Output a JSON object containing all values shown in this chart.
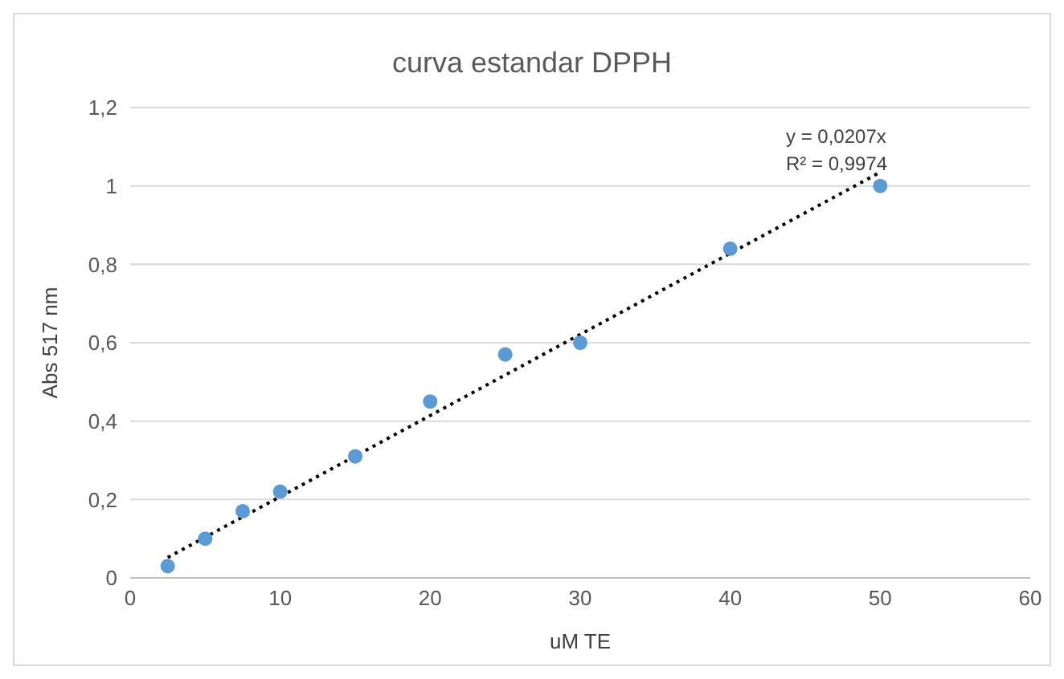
{
  "chart_data": {
    "type": "scatter",
    "title": "curva estandar DPPH",
    "xlabel": "uM TE",
    "ylabel": "Abs 517 nm",
    "xlim": [
      0,
      60
    ],
    "xticks": [
      0,
      10,
      20,
      30,
      40,
      50,
      60
    ],
    "ylim": [
      0,
      1.2
    ],
    "yticks": [
      0,
      {
        "value": 0.2,
        "label": "0,2"
      },
      {
        "value": 0.4,
        "label": "0,4"
      },
      {
        "value": 0.6,
        "label": "0,6"
      },
      {
        "value": 0.8,
        "label": "0,8"
      },
      1,
      {
        "value": 1.2,
        "label": "1,2"
      }
    ],
    "grid": "y",
    "legend": false,
    "marker": "circle",
    "series": [
      {
        "color": "#5b9bd5",
        "x": [
          2.5,
          5,
          7.5,
          10,
          15,
          20,
          25,
          30,
          40,
          50
        ],
        "values": [
          0.03,
          0.1,
          0.17,
          0.22,
          0.31,
          0.45,
          0.57,
          0.6,
          0.84,
          1.0
        ]
      },
      {
        "type": "line",
        "color": "#000000",
        "line_style": "dotted",
        "marker": "none",
        "x": [
          2.5,
          50
        ],
        "values": [
          0.052,
          1.035
        ]
      }
    ],
    "annotations": [
      "y = 0,0207x",
      "R² = 0,9974"
    ]
  }
}
